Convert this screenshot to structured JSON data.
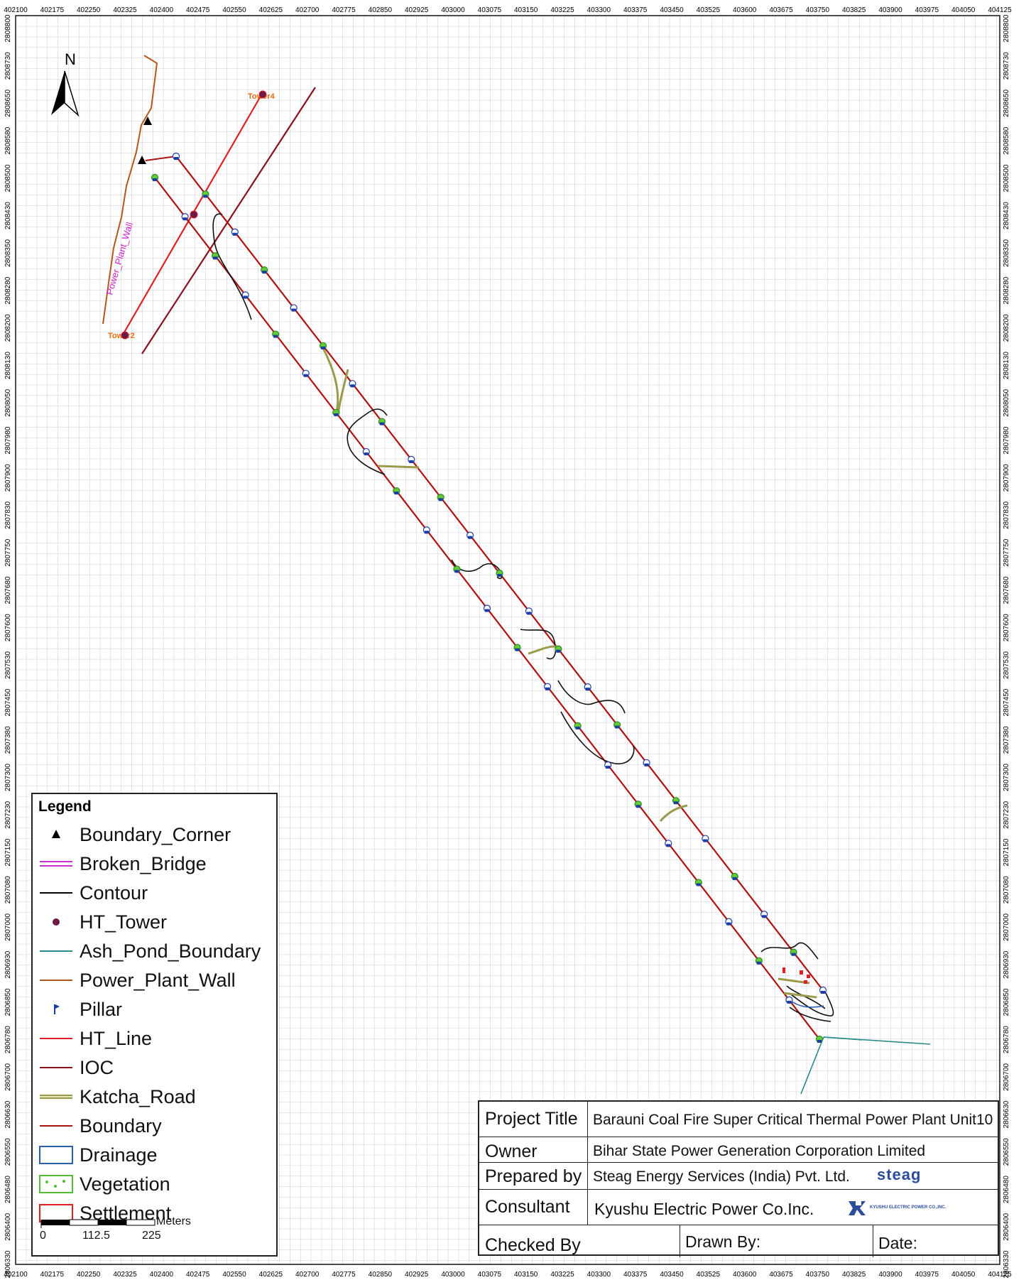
{
  "north_arrow_label": "N",
  "grid_x_labels": [
    "402100",
    "402175",
    "402250",
    "402325",
    "402400",
    "402475",
    "402550",
    "402625",
    "402700",
    "402775",
    "402850",
    "402925",
    "403000",
    "403075",
    "403150",
    "403225",
    "403300",
    "403375",
    "403450",
    "403525",
    "403600",
    "403675",
    "403750",
    "403825",
    "403900",
    "403975",
    "404050",
    "404125"
  ],
  "grid_y_labels": [
    "2808800",
    "2808730",
    "2808650",
    "2808580",
    "2808500",
    "2808430",
    "2808350",
    "2808280",
    "2808200",
    "2808130",
    "2808050",
    "2807980",
    "2807900",
    "2807830",
    "2807750",
    "2807680",
    "2807600",
    "2807530",
    "2807450",
    "2807380",
    "2807300",
    "2807230",
    "2807150",
    "2807080",
    "2807000",
    "2806930",
    "2806850",
    "2806780",
    "2806700",
    "2806630",
    "2806550",
    "2806480",
    "2806400",
    "2806330"
  ],
  "map_labels": {
    "tower4": "Tower4",
    "tower2": "Tower2",
    "power_plant_wall": "Power_Plant_Wall"
  },
  "legend": {
    "title": "Legend",
    "items": [
      {
        "label": "Boundary_Corner",
        "icon": "triangle-icon",
        "color": "#000000"
      },
      {
        "label": "Broken_Bridge",
        "icon": "double-line-icon",
        "color": "#cc33cc"
      },
      {
        "label": "Contour",
        "icon": "line-icon",
        "color": "#000000"
      },
      {
        "label": "HT_Tower",
        "icon": "circle-icon",
        "color": "#6b1a4a"
      },
      {
        "label": "Ash_Pond_Boundary",
        "icon": "line-icon",
        "color": "#2a8a8a"
      },
      {
        "label": "Power_Plant_Wall",
        "icon": "line-icon",
        "color": "#b5561a"
      },
      {
        "label": "Pillar",
        "icon": "flag-icon",
        "color": "#1a3da8"
      },
      {
        "label": "HT_Line",
        "icon": "line-icon",
        "color": "#e02020"
      },
      {
        "label": "IOC",
        "icon": "line-icon",
        "color": "#8a1020"
      },
      {
        "label": "Katcha_Road",
        "icon": "road-icon",
        "color": "#9a9a4a"
      },
      {
        "label": "Boundary",
        "icon": "line-icon",
        "color": "#b01010"
      },
      {
        "label": "Drainage",
        "icon": "box-icon",
        "color": "#2a5fb0"
      },
      {
        "label": "Vegetation",
        "icon": "vegetation-icon",
        "color": "#55bb33"
      },
      {
        "label": "Settlement",
        "icon": "box-icon",
        "color": "#e02020"
      }
    ],
    "scale": {
      "unit": "Meters",
      "ticks": [
        "0",
        "112.5",
        "225"
      ]
    }
  },
  "title_block": {
    "project_title_key": "Project Title",
    "project_title": "Barauni Coal Fire Super Critical Thermal Power Plant Unit10",
    "owner_key": "Owner",
    "owner": "Bihar State Power Generation Corporation Limited",
    "prepared_by_key": "Prepared by",
    "prepared_by": "Steag Energy Services (India) Pvt. Ltd.",
    "prepared_by_logo": "steag",
    "consultant_key": "Consultant",
    "consultant": "Kyushu Electric Power Co.Inc.",
    "consultant_logo": "KYUSHU ELECTRIC POWER CO.,INC.",
    "checked_by_key": "Checked By",
    "drawn_by_key": "Drawn By:",
    "date_key": "Date:"
  }
}
